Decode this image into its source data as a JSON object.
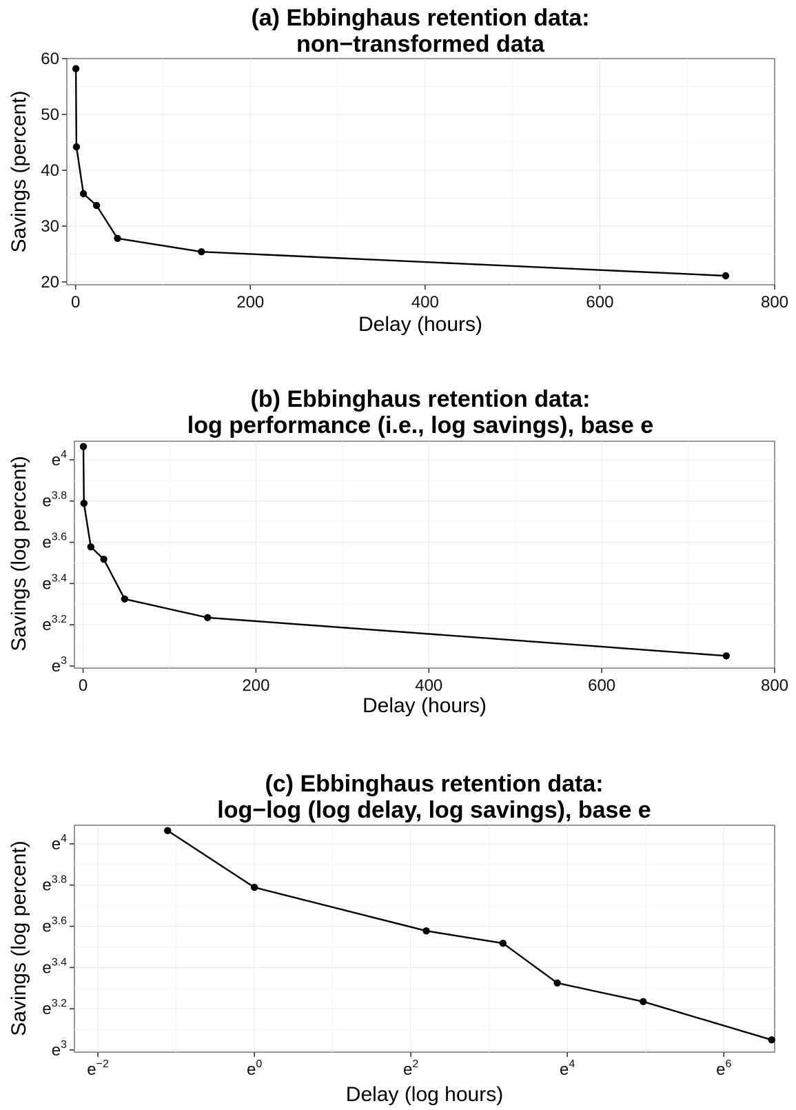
{
  "chart_data": [
    {
      "type": "line",
      "title_line1": "(a) Ebbinghaus retention data:",
      "title_line2": "non−transformed data",
      "xlabel": "Delay (hours)",
      "ylabel": "Savings (percent)",
      "x_scale": "linear",
      "y_scale": "linear",
      "xlim": [
        -10,
        800
      ],
      "ylim": [
        19.5,
        60
      ],
      "x_ticks": [
        {
          "value": 0,
          "label": "0"
        },
        {
          "value": 200,
          "label": "200"
        },
        {
          "value": 400,
          "label": "400"
        },
        {
          "value": 600,
          "label": "600"
        },
        {
          "value": 800,
          "label": "800"
        }
      ],
      "y_ticks": [
        {
          "value": 20,
          "label": "20"
        },
        {
          "value": 30,
          "label": "30"
        },
        {
          "value": 40,
          "label": "40"
        },
        {
          "value": 50,
          "label": "50"
        },
        {
          "value": 60,
          "label": "60"
        }
      ],
      "grid": true,
      "series": [
        {
          "x": [
            0.33,
            1,
            9,
            24,
            48,
            144,
            744
          ],
          "y": [
            58.2,
            44.2,
            35.8,
            33.7,
            27.8,
            25.4,
            21.1
          ]
        }
      ]
    },
    {
      "type": "line",
      "title_line1": "(b) Ebbinghaus retention data:",
      "title_line2": "log performance (i.e., log savings), base e",
      "xlabel": "Delay (hours)",
      "ylabel": "Savings (log percent)",
      "x_scale": "linear",
      "y_scale": "log_e",
      "xlim": [
        -10,
        800
      ],
      "ylim": [
        2.99,
        4.09
      ],
      "x_ticks": [
        {
          "value": 0,
          "label": "0"
        },
        {
          "value": 200,
          "label": "200"
        },
        {
          "value": 400,
          "label": "400"
        },
        {
          "value": 600,
          "label": "600"
        },
        {
          "value": 800,
          "label": "800"
        }
      ],
      "y_ticks": [
        {
          "value": 3,
          "base": "e",
          "exp": "3"
        },
        {
          "value": 3.2,
          "base": "e",
          "exp": "3.2"
        },
        {
          "value": 3.4,
          "base": "e",
          "exp": "3.4"
        },
        {
          "value": 3.6,
          "base": "e",
          "exp": "3.6"
        },
        {
          "value": 3.8,
          "base": "e",
          "exp": "3.8"
        },
        {
          "value": 4,
          "base": "e",
          "exp": "4"
        }
      ],
      "grid": true,
      "series": [
        {
          "x": [
            0.33,
            1,
            9,
            24,
            48,
            144,
            744
          ],
          "y": [
            58.2,
            44.2,
            35.8,
            33.7,
            27.8,
            25.4,
            21.1
          ]
        }
      ]
    },
    {
      "type": "line",
      "title_line1": "(c) Ebbinghaus retention data:",
      "title_line2": "log−log (log delay, log savings), base e",
      "xlabel": "Delay (log hours)",
      "ylabel": "Savings (log percent)",
      "x_scale": "log_e",
      "y_scale": "log_e",
      "xlim": [
        -2.3,
        6.65
      ],
      "ylim": [
        2.99,
        4.09
      ],
      "x_ticks": [
        {
          "value": -2,
          "base": "e",
          "exp": "−2"
        },
        {
          "value": 0,
          "base": "e",
          "exp": "0"
        },
        {
          "value": 2,
          "base": "e",
          "exp": "2"
        },
        {
          "value": 4,
          "base": "e",
          "exp": "4"
        },
        {
          "value": 6,
          "base": "e",
          "exp": "6"
        }
      ],
      "y_ticks": [
        {
          "value": 3,
          "base": "e",
          "exp": "3"
        },
        {
          "value": 3.2,
          "base": "e",
          "exp": "3.2"
        },
        {
          "value": 3.4,
          "base": "e",
          "exp": "3.4"
        },
        {
          "value": 3.6,
          "base": "e",
          "exp": "3.6"
        },
        {
          "value": 3.8,
          "base": "e",
          "exp": "3.8"
        },
        {
          "value": 4,
          "base": "e",
          "exp": "4"
        }
      ],
      "grid": true,
      "series": [
        {
          "x": [
            0.33,
            1,
            9,
            24,
            48,
            144,
            744
          ],
          "y": [
            58.2,
            44.2,
            35.8,
            33.7,
            27.8,
            25.4,
            21.1
          ]
        }
      ]
    }
  ]
}
